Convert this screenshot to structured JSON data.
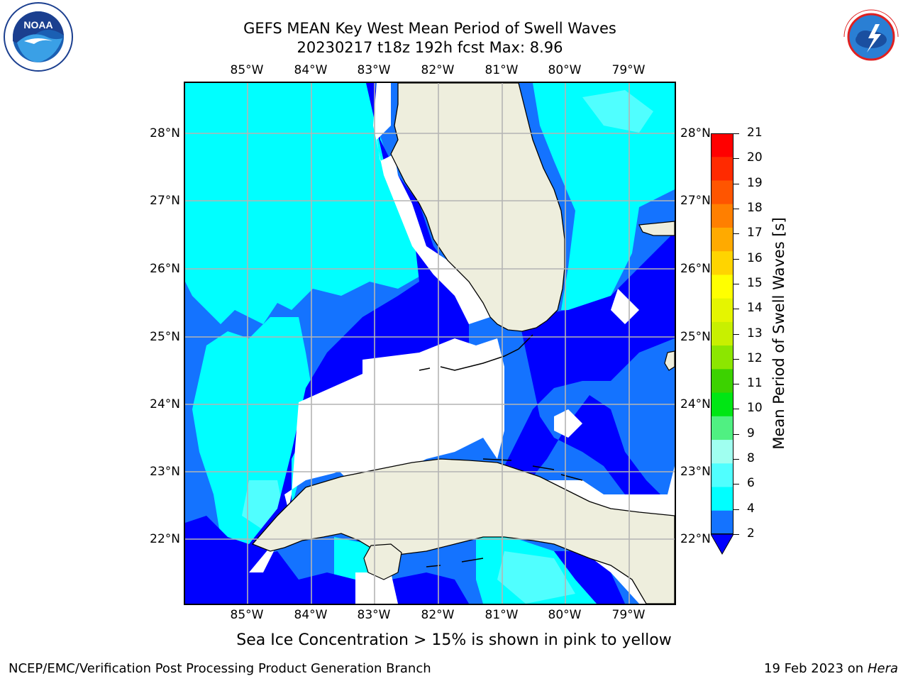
{
  "title": "GEFS MEAN Key West Mean Period of Swell Waves",
  "subtitle": "20230217 t18z 192h fcst   Max: 8.96",
  "lon_labels": [
    "85°W",
    "84°W",
    "83°W",
    "82°W",
    "81°W",
    "80°W",
    "79°W"
  ],
  "lat_labels": [
    "28°N",
    "27°N",
    "26°N",
    "25°N",
    "24°N",
    "23°N",
    "22°N"
  ],
  "colorbar": {
    "title": "Mean Period of Swell Waves [s]",
    "ticks": [
      "21",
      "20",
      "19",
      "18",
      "17",
      "16",
      "15",
      "14",
      "13",
      "12",
      "11",
      "10",
      "9",
      "8",
      "6",
      "4",
      "2"
    ],
    "colors": [
      "#ff0000",
      "#ff2a00",
      "#ff5500",
      "#ff7f00",
      "#ffaa00",
      "#ffd400",
      "#ffff00",
      "#e5f500",
      "#c8f000",
      "#8ce600",
      "#3cd200",
      "#00e614",
      "#50f082",
      "#a0fff0",
      "#50ffff",
      "#00ffff",
      "#1473ff",
      "#0000ff"
    ]
  },
  "caption": "Sea Ice Concentration > 15% is shown in pink to yellow",
  "footer_left": "NCEP/EMC/Verification Post Processing Product Generation Branch",
  "footer_date": "19 Feb 2023 on",
  "footer_host": "Hera",
  "logos": {
    "left": "NOAA",
    "right": "NATIONAL WEATHER SERVICE"
  },
  "map_colors": {
    "land": "#eeeedd",
    "blue": "#0000ff",
    "mid": "#1473ff",
    "cyan": "#00ffff",
    "lightcyan": "#50ffff",
    "grid": "#b4b4b4"
  }
}
